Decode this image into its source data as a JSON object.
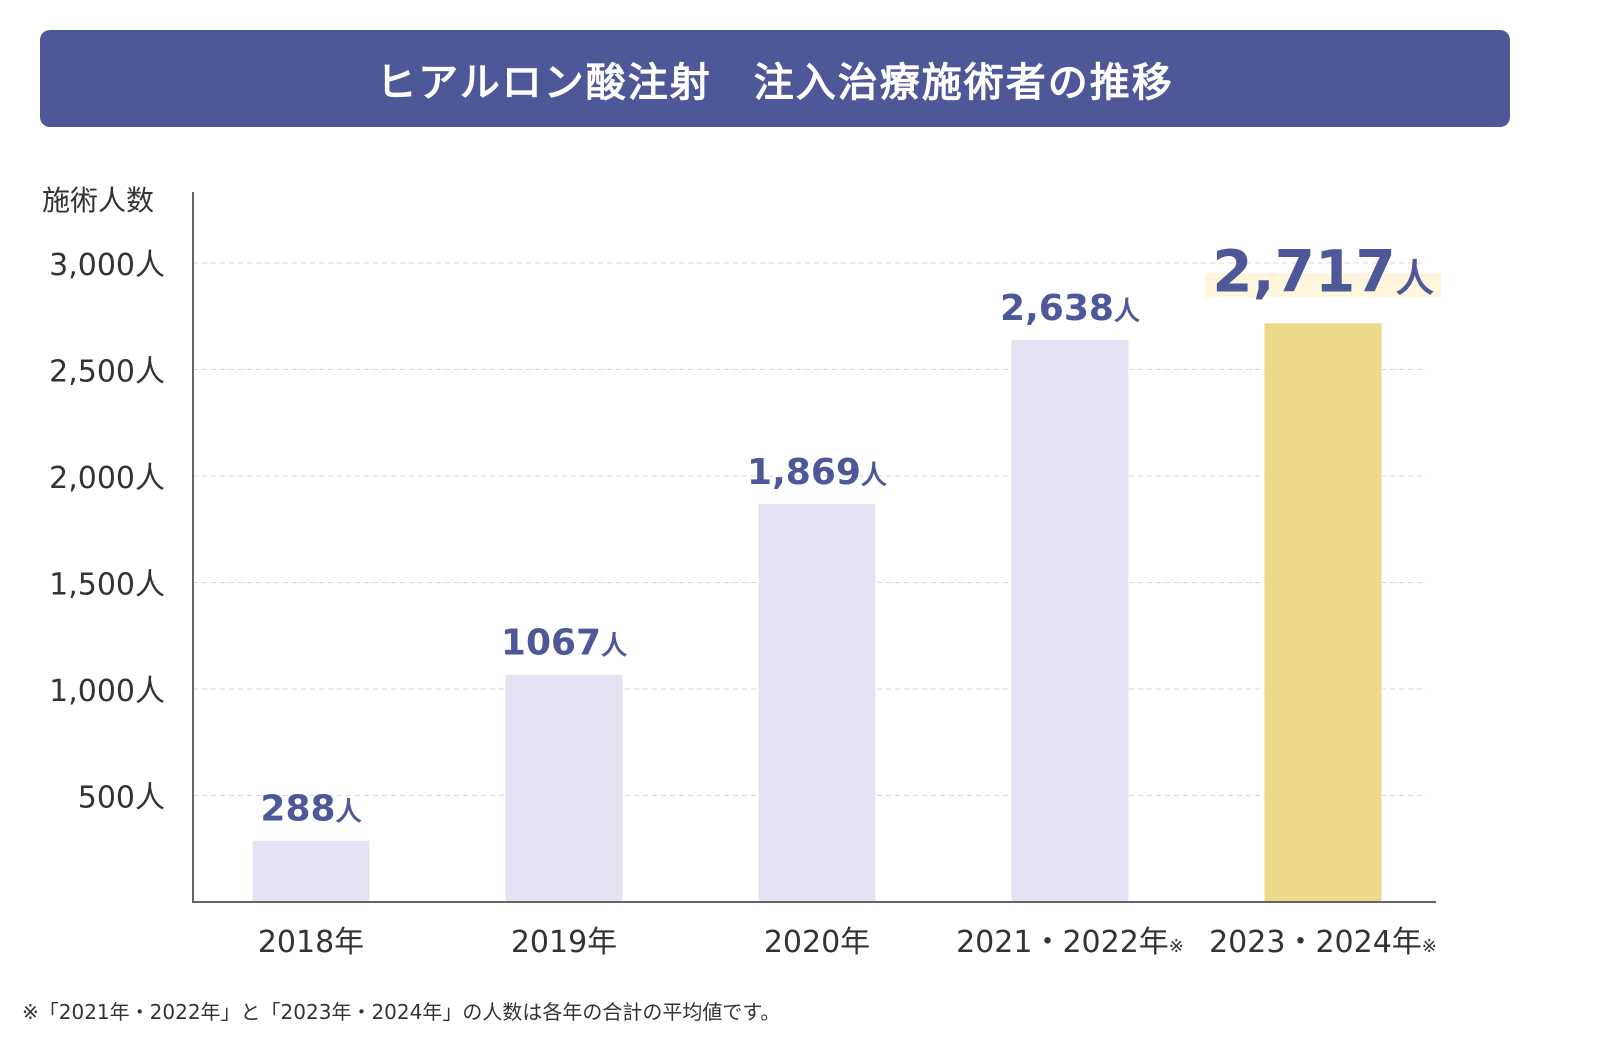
{
  "header": {
    "title": "ヒアルロン酸注射　注入治療施術者の推移"
  },
  "colors": {
    "header_bg": "#4e5899",
    "bar_default": "#e3e3f3",
    "bar_highlight": "#edd98a",
    "label_text": "#4e5899",
    "highlight_bg": "#fdf6dc",
    "axis": "#666666",
    "grid": "#d8d8d8",
    "tick_text": "#333333"
  },
  "chart_data": {
    "type": "bar",
    "title": "ヒアルロン酸注射　注入治療施術者の推移",
    "ylabel": "施術人数",
    "xlabel": "",
    "ylim": [
      0,
      3000
    ],
    "grid": true,
    "yticks": [
      500,
      1000,
      1500,
      2000,
      2500,
      3000
    ],
    "ytick_labels": [
      "500人",
      "1,000人",
      "1,500人",
      "2,000人",
      "2,500人",
      "3,000人"
    ],
    "categories": [
      "2018年",
      "2019年",
      "2020年",
      "2021・2022年",
      "2023・2024年"
    ],
    "category_marks": [
      "",
      "",
      "",
      "※",
      "※"
    ],
    "values": [
      288,
      1067,
      1869,
      2638,
      2717
    ],
    "value_labels": [
      "288",
      "1067",
      "1,869",
      "2,638",
      "2,717"
    ],
    "value_unit": "人",
    "highlight_index": 4
  },
  "footnote": "※「2021年・2022年」と「2023年・2024年」の人数は各年の合計の平均値です。"
}
